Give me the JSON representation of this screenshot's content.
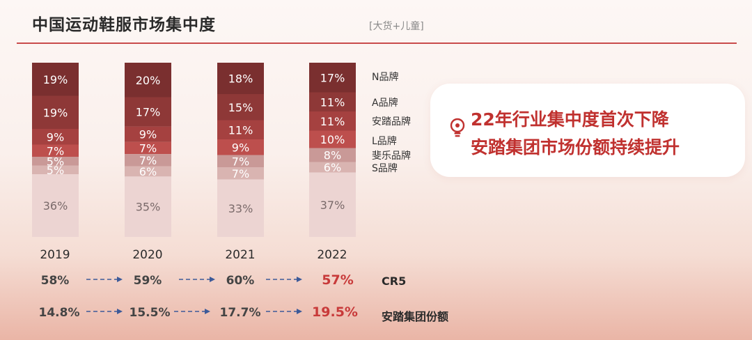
{
  "header": {
    "title": "中国运动鞋服市场集中度",
    "subtitle": "[大货+儿童]"
  },
  "chart_data": {
    "type": "bar",
    "stacked": true,
    "categories": [
      "2019",
      "2020",
      "2021",
      "2022"
    ],
    "series": [
      {
        "name": "N品牌",
        "values": [
          19,
          20,
          18,
          17
        ],
        "color": "#7a2f2f"
      },
      {
        "name": "A品牌",
        "values": [
          19,
          17,
          15,
          11
        ],
        "color": "#8e3837"
      },
      {
        "name": "安踏品牌",
        "values": [
          9,
          9,
          11,
          11
        ],
        "color": "#a54140"
      },
      {
        "name": "L品牌",
        "values": [
          7,
          7,
          9,
          10
        ],
        "color": "#bd4f4d"
      },
      {
        "name": "斐乐品牌",
        "values": [
          5,
          7,
          7,
          8
        ],
        "color": "#c99997"
      },
      {
        "name": "S品牌",
        "values": [
          5,
          6,
          7,
          6
        ],
        "color": "#d9b4b1"
      },
      {
        "name": "",
        "values": [
          36,
          35,
          33,
          37
        ],
        "color": "#ecd4d2"
      }
    ],
    "labels": [
      [
        "19%",
        "20%",
        "18%",
        "17%"
      ],
      [
        "19%",
        "17%",
        "15%",
        "11%"
      ],
      [
        "9%",
        "9%",
        "11%",
        "11%"
      ],
      [
        "7%",
        "7%",
        "9%",
        "10%"
      ],
      [
        "5%",
        "7%",
        "7%",
        "8%"
      ],
      [
        "5%",
        "6%",
        "7%",
        "6%"
      ],
      [
        "36%",
        "35%",
        "33%",
        "37%"
      ]
    ],
    "ylim": [
      0,
      100
    ]
  },
  "rows": {
    "cr5": {
      "label": "CR5",
      "values": [
        "58%",
        "59%",
        "60%",
        "57%"
      ]
    },
    "anta_share": {
      "label": "安踏集团份额",
      "values": [
        "14.8%",
        "15.5%",
        "17.7%",
        "19.5%"
      ]
    }
  },
  "callout": {
    "line1": "22年行业集中度首次下降",
    "line2": "安踏集团市场份额持续提升",
    "icon": "lightbulb-icon"
  },
  "colors": {
    "accent": "#c0312f",
    "arrow": "#3d5a99",
    "rule": "#c94b4b"
  }
}
